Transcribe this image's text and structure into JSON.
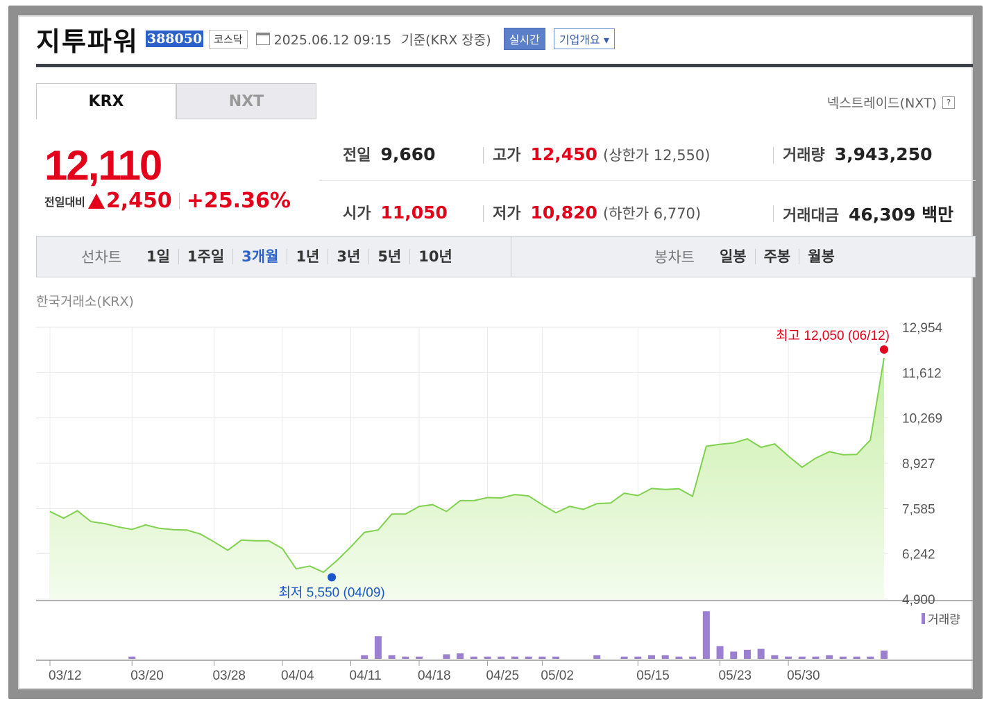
{
  "header": {
    "stock_name": "지투파워",
    "code": "388050",
    "market": "코스닥",
    "datetime": "2025.06.12 09:15",
    "basis": "기준(KRX 장중)",
    "realtime_label": "실시간",
    "company_label": "기업개요 ▾"
  },
  "tabs": [
    {
      "label": "KRX",
      "active": true
    },
    {
      "label": "NXT",
      "active": false
    }
  ],
  "nxt_help_label": "넥스트레이드(NXT)",
  "quote": {
    "price": "12,110",
    "change_label": "전일대비",
    "change": "2,450",
    "change_pct": "+25.36%",
    "prev_close_label": "전일",
    "prev_close": "9,660",
    "high_label": "고가",
    "high": "12,450",
    "upper_limit_note": "(상한가 12,550)",
    "volume_label": "거래량",
    "volume": "3,943,250",
    "open_label": "시가",
    "open": "11,050",
    "low_label": "저가",
    "low": "10,820",
    "lower_limit_note": "(하한가 6,770)",
    "turnover_label": "거래대금",
    "turnover": "46,309 백만"
  },
  "range_bar": {
    "line_label": "선차트",
    "line_items": [
      "1일",
      "1주일",
      "3개월",
      "1년",
      "3년",
      "5년",
      "10년"
    ],
    "line_active": "3개월",
    "candle_label": "봉차트",
    "candle_items": [
      "일봉",
      "주봉",
      "월봉"
    ]
  },
  "market_name": "한국거래소(KRX)",
  "colors": {
    "up": "#e2001a",
    "down": "#1a56c9",
    "line": "#7fd14f",
    "fill_top": "#c9efa8",
    "fill_bottom": "#f4fcee",
    "volume": "#9b7fd1"
  },
  "chart_data": {
    "type": "area",
    "ylim": [
      4900,
      12954
    ],
    "yticks": [
      12954,
      11612,
      10269,
      8927,
      7585,
      6242,
      4900
    ],
    "ytick_labels": [
      "12,954",
      "11,612",
      "10,269",
      "8,927",
      "7,585",
      "6,242",
      "4,900"
    ],
    "xtick_labels": [
      "03/12",
      "03/20",
      "03/28",
      "04/04",
      "04/11",
      "04/18",
      "04/25",
      "05/02",
      "05/15",
      "05/23",
      "05/30"
    ],
    "xtick_index": [
      0,
      6,
      12,
      17,
      22,
      27,
      32,
      36,
      43,
      49,
      54
    ],
    "values": [
      7500,
      7300,
      7520,
      7200,
      7140,
      7040,
      6970,
      7100,
      7000,
      6960,
      6950,
      6830,
      6600,
      6350,
      6650,
      6630,
      6630,
      6400,
      5800,
      5880,
      5700,
      6050,
      6450,
      6880,
      6950,
      7420,
      7420,
      7650,
      7700,
      7500,
      7820,
      7820,
      7910,
      7900,
      8000,
      7960,
      7700,
      7460,
      7650,
      7560,
      7730,
      7750,
      8040,
      7970,
      8180,
      8150,
      8170,
      7950,
      9430,
      9490,
      9530,
      9650,
      9400,
      9500,
      9140,
      8810,
      9080,
      9270,
      9180,
      9190,
      9620,
      12050
    ],
    "volumes": [
      0,
      0,
      0,
      0,
      0,
      0,
      0.5,
      0,
      0,
      0,
      0,
      0,
      0,
      0,
      0,
      0,
      0,
      0,
      0,
      0,
      0,
      0,
      0,
      0.8,
      5.0,
      0.8,
      0.5,
      0.5,
      0,
      1.0,
      1.2,
      0.5,
      0.5,
      0.5,
      0.5,
      0.5,
      0.5,
      0.5,
      0,
      0,
      0.8,
      0,
      0.5,
      0.5,
      0.8,
      0.8,
      0.5,
      0.5,
      10.5,
      2.8,
      1.6,
      2.0,
      2.2,
      0.8,
      0.5,
      0.5,
      0.5,
      0.8,
      0.5,
      0.5,
      0.5,
      1.8
    ],
    "max_annotation": {
      "label": "최고",
      "value": "12,050",
      "date": "(06/12)",
      "index": 61
    },
    "min_annotation": {
      "label": "최저",
      "value": "5,550",
      "date": "(04/09)",
      "index": 20
    },
    "volume_legend": "거래량"
  }
}
